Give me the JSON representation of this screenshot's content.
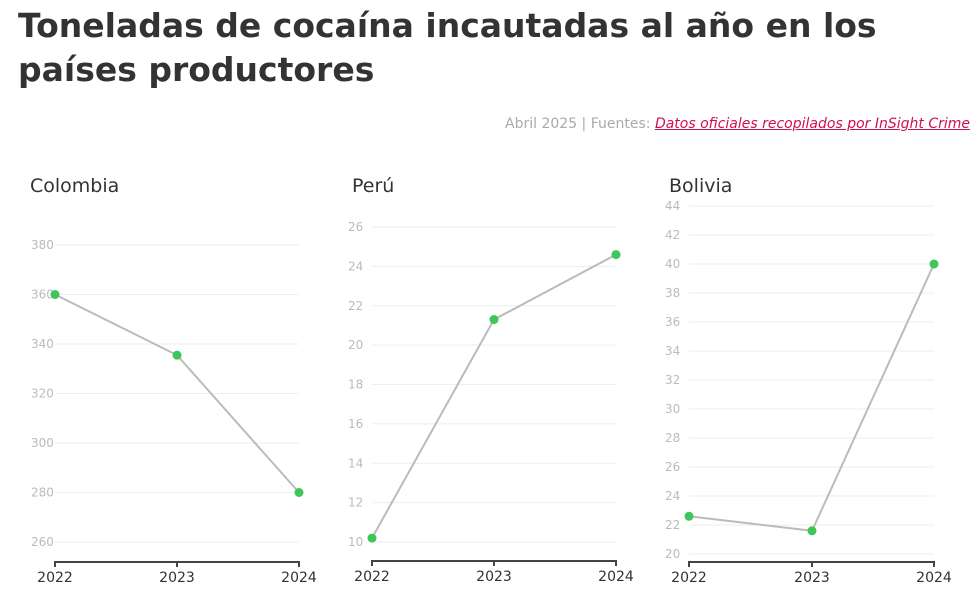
{
  "title": "Toneladas de cocaína incautadas al año en los países productores",
  "source": {
    "prefix": "Abril 2025 | Fuentes: ",
    "link_text": "Datos oficiales recopilados por InSight Crime"
  },
  "colors": {
    "line": "#bbbbbb",
    "point": "#3dc659",
    "grid": "#eeeeee",
    "link": "#d0104c"
  },
  "chart_data": [
    {
      "type": "line",
      "title": "Colombia",
      "categories": [
        "2022",
        "2023",
        "2024"
      ],
      "values": [
        360,
        335.5,
        280
      ],
      "yticks": [
        260,
        280,
        300,
        320,
        340,
        360,
        380
      ],
      "ylim": [
        252,
        380
      ],
      "grid": true
    },
    {
      "type": "line",
      "title": "Perú",
      "categories": [
        "2022",
        "2023",
        "2024"
      ],
      "values": [
        10.2,
        21.3,
        24.6
      ],
      "yticks": [
        10,
        12,
        14,
        16,
        18,
        20,
        22,
        24,
        26
      ],
      "ylim": [
        9.1,
        26
      ],
      "grid": true
    },
    {
      "type": "line",
      "title": "Bolivia",
      "categories": [
        "2022",
        "2023",
        "2024"
      ],
      "values": [
        22.6,
        21.6,
        40
      ],
      "yticks": [
        20,
        22,
        24,
        26,
        28,
        30,
        32,
        34,
        36,
        38,
        40,
        42,
        44
      ],
      "ylim": [
        19.4,
        44
      ],
      "grid": true
    }
  ]
}
